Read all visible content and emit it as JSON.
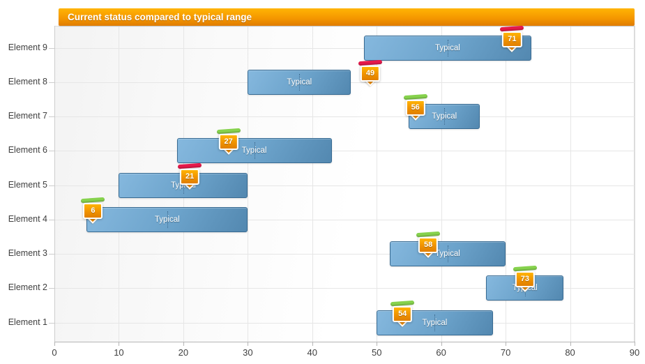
{
  "chart_data": {
    "type": "bar",
    "variant": "horizontal-range-bars-with-target-markers",
    "title": "Current status compared to typical range",
    "range_label": "Typical",
    "xlim": [
      0,
      90
    ],
    "x_ticks": [
      0,
      10,
      20,
      30,
      40,
      50,
      60,
      70,
      80,
      90
    ],
    "grid": true,
    "legend": "none",
    "categories": [
      "Element 9",
      "Element 8",
      "Element 7",
      "Element 6",
      "Element 5",
      "Element 4",
      "Element 3",
      "Element 2",
      "Element 1"
    ],
    "rows": [
      {
        "label": "Element 9",
        "typical_low": 48,
        "typical_high": 74,
        "current": 71,
        "cap": "red"
      },
      {
        "label": "Element 8",
        "typical_low": 30,
        "typical_high": 46,
        "current": 49,
        "cap": "red"
      },
      {
        "label": "Element 7",
        "typical_low": 55,
        "typical_high": 66,
        "current": 56,
        "cap": "green"
      },
      {
        "label": "Element 6",
        "typical_low": 19,
        "typical_high": 43,
        "current": 27,
        "cap": "green"
      },
      {
        "label": "Element 5",
        "typical_low": 10,
        "typical_high": 30,
        "current": 21,
        "cap": "red"
      },
      {
        "label": "Element 4",
        "typical_low": 5,
        "typical_high": 30,
        "current": 6,
        "cap": "green"
      },
      {
        "label": "Element 3",
        "typical_low": 52,
        "typical_high": 70,
        "current": 58,
        "cap": "green"
      },
      {
        "label": "Element 2",
        "typical_low": 67,
        "typical_high": 79,
        "current": 73,
        "cap": "green"
      },
      {
        "label": "Element 1",
        "typical_low": 50,
        "typical_high": 68,
        "current": 54,
        "cap": "green"
      }
    ]
  },
  "colors": {
    "title_bar_top": "#ffb404",
    "title_bar_bottom": "#e07c00",
    "bar_fill_light": "#85b8de",
    "bar_fill_dark": "#5388b0",
    "bar_border": "#376a92",
    "badge_orange": "#f09200",
    "cap_red": "#e6194b",
    "cap_green": "#86d24d",
    "grid_line": "#e6e6e6",
    "axis_line": "#b5b5b5"
  }
}
